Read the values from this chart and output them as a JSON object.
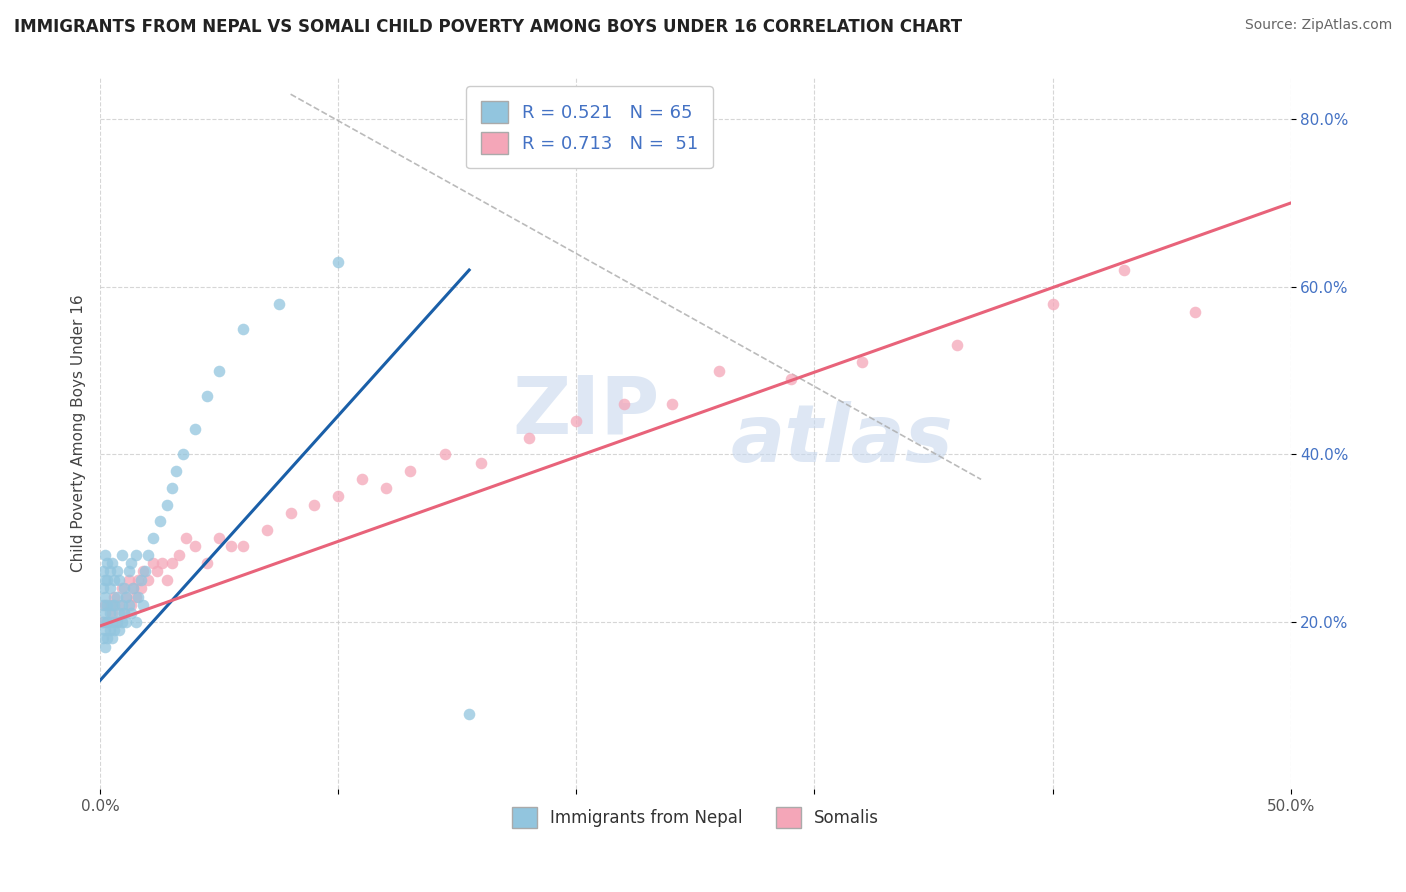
{
  "title": "IMMIGRANTS FROM NEPAL VS SOMALI CHILD POVERTY AMONG BOYS UNDER 16 CORRELATION CHART",
  "source": "Source: ZipAtlas.com",
  "ylabel": "Child Poverty Among Boys Under 16",
  "x_min": 0.0,
  "x_max": 0.5,
  "y_min": 0.0,
  "y_max": 0.85,
  "x_ticks": [
    0.0,
    0.1,
    0.2,
    0.3,
    0.4,
    0.5
  ],
  "x_tick_labels": [
    "0.0%",
    "",
    "",
    "",
    "",
    "50.0%"
  ],
  "y_ticks": [
    0.2,
    0.4,
    0.6,
    0.8
  ],
  "y_tick_labels": [
    "20.0%",
    "40.0%",
    "60.0%",
    "80.0%"
  ],
  "nepal_R": 0.521,
  "nepal_N": 65,
  "somali_R": 0.713,
  "somali_N": 51,
  "nepal_color": "#92c5de",
  "somali_color": "#f4a6b8",
  "nepal_line_color": "#1a5fa8",
  "somali_line_color": "#e8637a",
  "watermark_zip": "ZIP",
  "watermark_atlas": "atlas",
  "nepal_line_x": [
    0.0,
    0.155
  ],
  "nepal_line_y": [
    0.13,
    0.62
  ],
  "somali_line_x": [
    0.0,
    0.5
  ],
  "somali_line_y": [
    0.195,
    0.7
  ],
  "dash_line_x": [
    0.08,
    0.37
  ],
  "dash_line_y": [
    0.83,
    0.37
  ],
  "nepal_scatter_x": [
    0.001,
    0.001,
    0.001,
    0.001,
    0.001,
    0.002,
    0.002,
    0.002,
    0.002,
    0.002,
    0.002,
    0.003,
    0.003,
    0.003,
    0.003,
    0.003,
    0.004,
    0.004,
    0.004,
    0.004,
    0.005,
    0.005,
    0.005,
    0.005,
    0.006,
    0.006,
    0.006,
    0.007,
    0.007,
    0.007,
    0.008,
    0.008,
    0.008,
    0.009,
    0.009,
    0.009,
    0.01,
    0.01,
    0.011,
    0.011,
    0.012,
    0.012,
    0.013,
    0.013,
    0.014,
    0.015,
    0.015,
    0.016,
    0.017,
    0.018,
    0.019,
    0.02,
    0.022,
    0.025,
    0.028,
    0.03,
    0.032,
    0.035,
    0.04,
    0.045,
    0.05,
    0.06,
    0.075,
    0.1,
    0.155
  ],
  "nepal_scatter_y": [
    0.18,
    0.2,
    0.22,
    0.24,
    0.26,
    0.17,
    0.19,
    0.21,
    0.23,
    0.25,
    0.28,
    0.18,
    0.2,
    0.22,
    0.25,
    0.27,
    0.19,
    0.21,
    0.24,
    0.26,
    0.18,
    0.2,
    0.22,
    0.27,
    0.19,
    0.22,
    0.25,
    0.2,
    0.23,
    0.26,
    0.19,
    0.21,
    0.25,
    0.2,
    0.22,
    0.28,
    0.21,
    0.24,
    0.2,
    0.23,
    0.22,
    0.26,
    0.21,
    0.27,
    0.24,
    0.2,
    0.28,
    0.23,
    0.25,
    0.22,
    0.26,
    0.28,
    0.3,
    0.32,
    0.34,
    0.36,
    0.38,
    0.4,
    0.43,
    0.47,
    0.5,
    0.55,
    0.58,
    0.63,
    0.09
  ],
  "somali_scatter_x": [
    0.001,
    0.002,
    0.003,
    0.004,
    0.005,
    0.006,
    0.007,
    0.008,
    0.009,
    0.01,
    0.011,
    0.012,
    0.013,
    0.014,
    0.015,
    0.016,
    0.017,
    0.018,
    0.02,
    0.022,
    0.024,
    0.026,
    0.028,
    0.03,
    0.033,
    0.036,
    0.04,
    0.045,
    0.05,
    0.055,
    0.06,
    0.07,
    0.08,
    0.09,
    0.1,
    0.11,
    0.12,
    0.13,
    0.145,
    0.16,
    0.18,
    0.2,
    0.22,
    0.24,
    0.26,
    0.29,
    0.32,
    0.36,
    0.4,
    0.43,
    0.46
  ],
  "somali_scatter_y": [
    0.2,
    0.22,
    0.2,
    0.22,
    0.21,
    0.23,
    0.2,
    0.22,
    0.24,
    0.21,
    0.23,
    0.25,
    0.22,
    0.24,
    0.23,
    0.25,
    0.24,
    0.26,
    0.25,
    0.27,
    0.26,
    0.27,
    0.25,
    0.27,
    0.28,
    0.3,
    0.29,
    0.27,
    0.3,
    0.29,
    0.29,
    0.31,
    0.33,
    0.34,
    0.35,
    0.37,
    0.36,
    0.38,
    0.4,
    0.39,
    0.42,
    0.44,
    0.46,
    0.46,
    0.5,
    0.49,
    0.51,
    0.53,
    0.58,
    0.62,
    0.57
  ]
}
